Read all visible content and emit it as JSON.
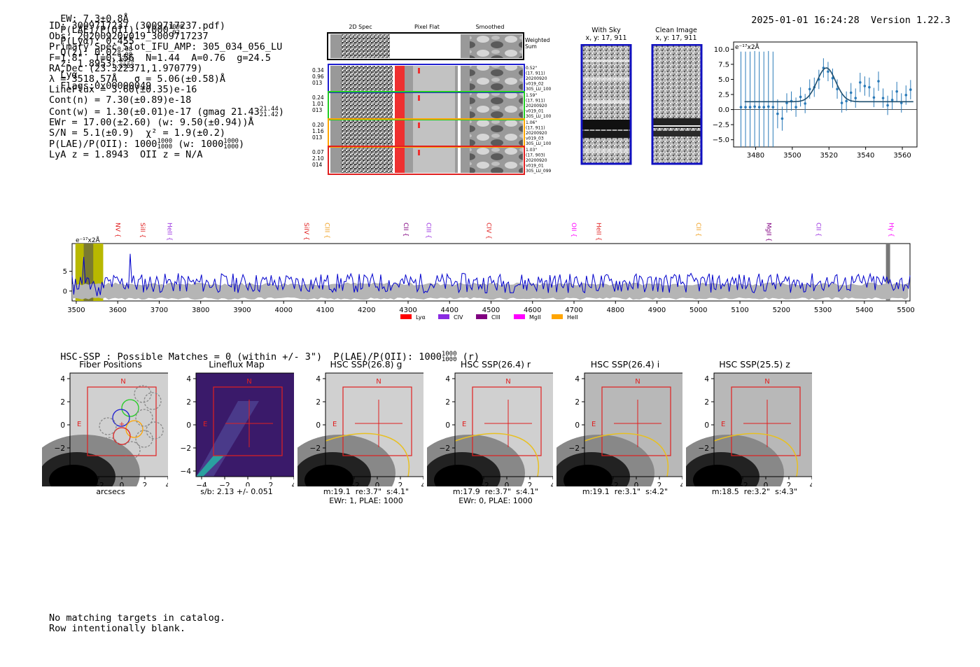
{
  "header": {
    "ew": "EW: 7.3±0.8Å",
    "plae_label": "P(LAE)/P(OII): 1000",
    "plae_hi": "1000",
    "plae_lo": "02",
    "plya": "P(Lyα): 0.455",
    "qz_label": "Q(z): 0.02",
    "qz_hi": "0.08",
    "qz_lo": "0.08",
    "z_label": "z: 1.8953",
    "z_hi": "1.8953",
    "z_lo": "1.8953",
    "z_line": "Lyα",
    "flags": "Flags:0x00000049",
    "timestamp": "2025-01-01 16:24:28",
    "version": "Version 1.22.3"
  },
  "info": {
    "id": "ID: 3009717237 (3009717237.pdf)",
    "obs": "Obs: 20200920v019_3009717237",
    "slot": "Primary Spec_Slot_IFU_AMP: 305_034_056_LU",
    "params": "F=1.8\"  T=0.156  N=1.44  A=0.76  g=24.5",
    "radec": "RA,Dec (23.322371,1.970779)",
    "lambda": "λ = 3518.57Å   σ = 5.06(±0.58)Å",
    "lineflux": "LineFlux = 3.60(±0.35)e-16",
    "contn": "Cont(n) = 7.30(±0.89)e-18",
    "contw": "Cont(w) = 1.30(±0.01)e-17 (gmag 21.43",
    "contw_hi": "21.44",
    "contw_lo": "21.42",
    "contw_end": ")",
    "ewr": "EWr = 17.00(±2.60) (w: 9.50(±0.94))Å",
    "sn": "S/N = 5.1(±0.9)  χ² = 1.9(±0.2)",
    "plae": "P(LAE)/P(OII): 1000",
    "plae_hi": "1000",
    "plae_lo": "1000",
    "plae_w": "(w: 1000",
    "plae_w_hi": "1000",
    "plae_w_lo": "1000",
    "plae_w_end": ")",
    "lya": "LyA z = 1.8943  OII z = N/A"
  },
  "cutouts": {
    "col_2d": "2D Spec",
    "col_flat": "Pixel Flat",
    "col_smooth": "Smoothed",
    "weighted_sum": "Weighted Sum",
    "rows": [
      {
        "l1": "0.34",
        "l2": "0.96",
        "l3": "013",
        "r1": "0.52\"",
        "r2": "(17, 911)",
        "r3": "20200920",
        "r4": "v019_02",
        "r5": "305_LU_100",
        "color": "#1f1fd0"
      },
      {
        "l1": "0.24",
        "l2": "1.01",
        "l3": "013",
        "r1": "1.59\"",
        "r2": "(17, 911)",
        "r3": "20200920",
        "r4": "v019_01",
        "r5": "305_LU_100",
        "color": "#22cc22"
      },
      {
        "l1": "0.20",
        "l2": "1.16",
        "l3": "013",
        "r1": "1.06\"",
        "r2": "(17, 911)",
        "r3": "20200920",
        "r4": "v019_03",
        "r5": "305_LU_100",
        "color": "#ffa500"
      },
      {
        "l1": "0.07",
        "l2": "2.10",
        "l3": "014",
        "r1": "1.03\"",
        "r2": "(17, 903)",
        "r3": "20200920",
        "r4": "v019_01",
        "r5": "305_LU_099",
        "color": "#e02020"
      }
    ]
  },
  "sky": {
    "with_sky": "With Sky",
    "clean": "Clean Image",
    "xy": "x, y: 17, 911"
  },
  "line_fit_chart": {
    "ylabel_unit": "e⁻¹⁷x2Å",
    "x_ticks": [
      "3480",
      "3500",
      "3520",
      "3540",
      "3560"
    ],
    "y_ticks": [
      "10.0",
      "7.5",
      "5.0",
      "2.5",
      "0.0",
      "−2.5",
      "−5.0"
    ]
  },
  "chart_data": [
    {
      "type": "scatter",
      "title": "",
      "xlabel": "",
      "ylabel": "e-17 x2Å",
      "xlim": [
        3468,
        3568
      ],
      "ylim": [
        -6.2,
        11.2
      ],
      "x": [
        3472,
        3474.5,
        3477,
        3479.5,
        3482,
        3484.5,
        3487,
        3489.5,
        3492,
        3494.5,
        3497,
        3499.5,
        3502,
        3504.5,
        3507,
        3509.5,
        3512,
        3514.5,
        3517,
        3519.5,
        3522,
        3524.5,
        3527,
        3529.5,
        3532,
        3534.5,
        3537,
        3539.5,
        3542,
        3544.5,
        3547,
        3549.5,
        3552,
        3554.5,
        3557,
        3559.5,
        3562,
        3564.5
      ],
      "y": [
        0.4,
        0.4,
        0.4,
        0.5,
        0.4,
        0.4,
        0.5,
        0.4,
        -0.7,
        -1.5,
        1.1,
        1.4,
        0.4,
        2.1,
        1.0,
        3.4,
        3.7,
        5.0,
        6.9,
        6.3,
        5.2,
        3.4,
        1.1,
        1.4,
        2.8,
        1.9,
        4.5,
        3.9,
        3.7,
        2.0,
        4.7,
        1.9,
        0.7,
        1.6,
        3.0,
        1.1,
        2.4,
        3.3
      ],
      "err": [
        9.2,
        9.2,
        9.2,
        9.2,
        9.2,
        9.2,
        9.2,
        9.2,
        2.4,
        2.0,
        1.6,
        1.6,
        1.6,
        1.6,
        1.6,
        1.6,
        1.6,
        1.6,
        1.6,
        1.6,
        1.6,
        1.6,
        1.6,
        1.6,
        1.6,
        1.6,
        1.6,
        1.6,
        1.6,
        1.6,
        1.6,
        1.6,
        1.6,
        1.6,
        1.6,
        1.6,
        1.6,
        1.6
      ],
      "fit": {
        "center": 3518.57,
        "sigma": 5.06,
        "amplitude": 5.6,
        "continuum": 1.3
      }
    },
    {
      "type": "line",
      "title": "",
      "xlabel": "",
      "ylabel": "e-17 x2Å",
      "xlim": [
        3490,
        5510
      ],
      "ylim": [
        -2.5,
        12
      ],
      "x_ticks": [
        3500,
        3600,
        3700,
        3800,
        3900,
        4000,
        4100,
        4200,
        4300,
        4400,
        4500,
        4600,
        4700,
        4800,
        4900,
        5000,
        5100,
        5200,
        5300,
        5400,
        5500
      ],
      "y_ticks": [
        0,
        5
      ],
      "series": [
        {
          "name": "spectrum",
          "color": "#0000cc",
          "values": [
            1.5,
            8.6,
            0.5,
            3.8,
            -1.2,
            4.0,
            -0.7,
            3.6,
            1.0,
            -0.5,
            9.5,
            1.2,
            5.4,
            2.1,
            3.3,
            -1.0,
            4.4,
            2.0,
            3.0,
            1.5
          ]
        }
      ],
      "highlight_window": [
        3498,
        3565
      ],
      "lines": [
        {
          "name": "NV",
          "x": 3590,
          "color": "#e02020"
        },
        {
          "name": "SiII",
          "x": 3650,
          "color": "#e02020"
        },
        {
          "name": "HeII",
          "x": 3715,
          "color": "#9a30e0"
        },
        {
          "name": "SiIV",
          "x": 4045,
          "color": "#e02020"
        },
        {
          "name": "CIII",
          "x": 4095,
          "color": "#f0a020"
        },
        {
          "name": "CII",
          "x": 4285,
          "color": "#800080"
        },
        {
          "name": "CIII",
          "x": 4340,
          "color": "#9a30e0"
        },
        {
          "name": "CIV",
          "x": 4485,
          "color": "#e02020"
        },
        {
          "name": "OII",
          "x": 4690,
          "color": "#ff00ff"
        },
        {
          "name": "HeII",
          "x": 4750,
          "color": "#e02020"
        },
        {
          "name": "CII",
          "x": 4990,
          "color": "#f0a020"
        },
        {
          "name": "MgII",
          "x": 5160,
          "color": "#800080"
        },
        {
          "name": "CII",
          "x": 5280,
          "color": "#9a30e0"
        },
        {
          "name": "Hγ",
          "x": 5455,
          "color": "#ff00ff"
        }
      ],
      "legend": [
        {
          "name": "Lyα",
          "color": "#ff0000"
        },
        {
          "name": "CIV",
          "color": "#8a2be2"
        },
        {
          "name": "CIII",
          "color": "#800080"
        },
        {
          "name": "MgII",
          "color": "#ff00ff"
        },
        {
          "name": "HeII",
          "color": "#ffa500"
        }
      ]
    }
  ],
  "spectrum": {
    "unit": "e⁻¹⁷x2Å",
    "x_ticks": [
      "3500",
      "3600",
      "3700",
      "3800",
      "3900",
      "4000",
      "4100",
      "4200",
      "4300",
      "4400",
      "4500",
      "4600",
      "4700",
      "4800",
      "4900",
      "5000",
      "5100",
      "5200",
      "5300",
      "5400",
      "5500"
    ],
    "y_ticks": [
      "5",
      "0"
    ]
  },
  "hsc": {
    "summary": "HSC-SSP : Possible Matches = 0 (within +/- 3\")  P(LAE)/P(OII): 1000",
    "summary_hi": "1000",
    "summary_lo": "1000",
    "summary_end": "(r)",
    "panels": [
      {
        "title": "Fiber Positions",
        "cap1": "arcsecs",
        "cap2": ""
      },
      {
        "title": "Lineflux Map",
        "cap1": "s/b: 2.13 +/- 0.051",
        "cap2": ""
      },
      {
        "title": "HSC SSP(26.8) g",
        "cap1": "m:19.1  re:3.7\"  s:4.1\"",
        "cap2": "EWr: 1, PLAE: 1000"
      },
      {
        "title": "HSC SSP(26.4) r",
        "cap1": "m:17.9  re:3.7\"  s:4.1\"",
        "cap2": "EWr: 0, PLAE: 1000"
      },
      {
        "title": "HSC SSP(26.4) i",
        "cap1": "m:19.1  re:3.1\"  s:4.2\"",
        "cap2": ""
      },
      {
        "title": "HSC SSP(25.5) z",
        "cap1": "m:18.5  re:3.2\"  s:4.3\"",
        "cap2": ""
      }
    ],
    "y_ticks": [
      "4",
      "2",
      "0",
      "−2",
      "−4"
    ],
    "x_ticks": [
      "−4",
      "−2",
      "0",
      "2",
      "4"
    ],
    "north": "N",
    "east": "E"
  },
  "footer": {
    "line1": "No matching targets in catalog.",
    "line2": "Row intentionally blank."
  }
}
